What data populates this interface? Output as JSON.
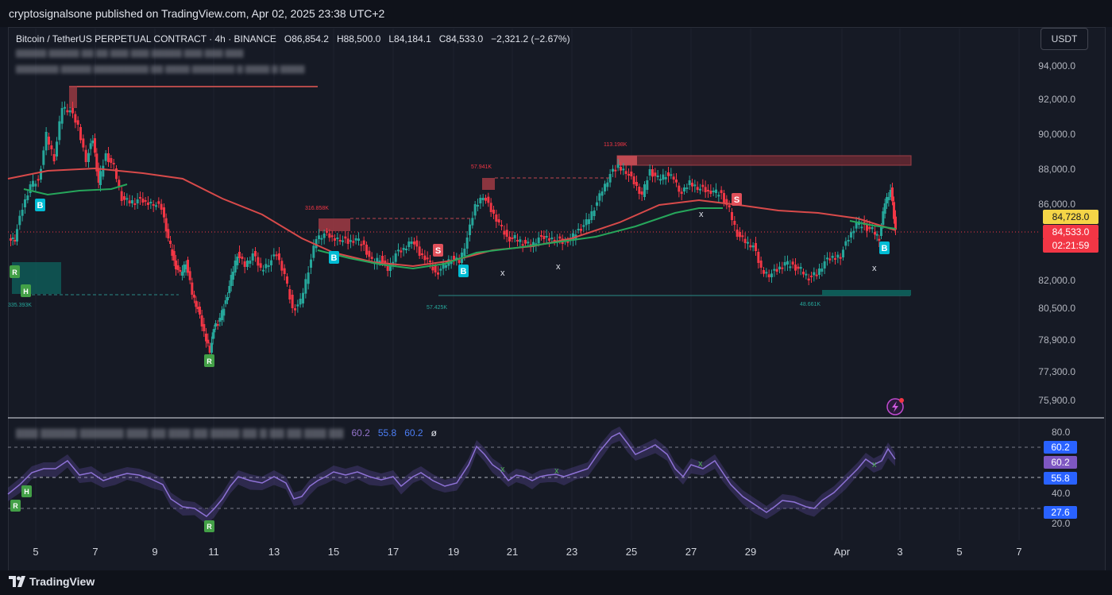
{
  "header": {
    "published": "cryptosignalsone published on TradingView.com, Apr 02, 2025 23:38 UTC+2"
  },
  "legend": {
    "symbol": "Bitcoin / TetherUS PERPETUAL CONTRACT · 4h · BINANCE",
    "open": "O86,854.2",
    "high": "H88,500.0",
    "low": "L84,184.1",
    "close": "C84,533.0",
    "change": "−2,321.2 (−2.67%)"
  },
  "currency_button": "USDT",
  "price_axis": [
    "94,000.0",
    "92,000.0",
    "90,000.0",
    "88,000.0",
    "86,000.0",
    "82,000.0",
    "80,500.0",
    "78,900.0",
    "77,300.0",
    "75,900.0"
  ],
  "price_tags": {
    "ma": "84,728.0",
    "last": "84,533.0",
    "countdown": "02:21:59"
  },
  "annotations": {
    "vol_316": "316.858K",
    "vol_57941": "57.941K",
    "vol_113": "113.198K",
    "vol_335": "335.393K",
    "vol_57425": "57.425K",
    "vol_48": "48.661K"
  },
  "signals": {
    "buy": "B",
    "sell": "S",
    "reversal": "R",
    "hold": "H",
    "cross": "x"
  },
  "rsi": {
    "v1": "60.2",
    "v2": "55.8",
    "v3": "60.2",
    "null_sym": "ø"
  },
  "rsi_axis": [
    "80.0",
    "40.0",
    "20.0"
  ],
  "rsi_tags": {
    "t1": "60.2",
    "t2": "60.2",
    "t3": "55.8",
    "t4": "27.6"
  },
  "time_axis": [
    "5",
    "7",
    "9",
    "11",
    "13",
    "15",
    "17",
    "19",
    "21",
    "23",
    "25",
    "27",
    "29",
    "Apr",
    "3",
    "5",
    "7"
  ],
  "brand": "TradingView",
  "colors": {
    "bull": "#26a69a",
    "bear": "#f23645",
    "ma": "#e84c4c",
    "ma2": "#26a65b",
    "rsi": "#7e57c2",
    "buy": "#00bcd4",
    "rev": "#4caf50"
  }
}
